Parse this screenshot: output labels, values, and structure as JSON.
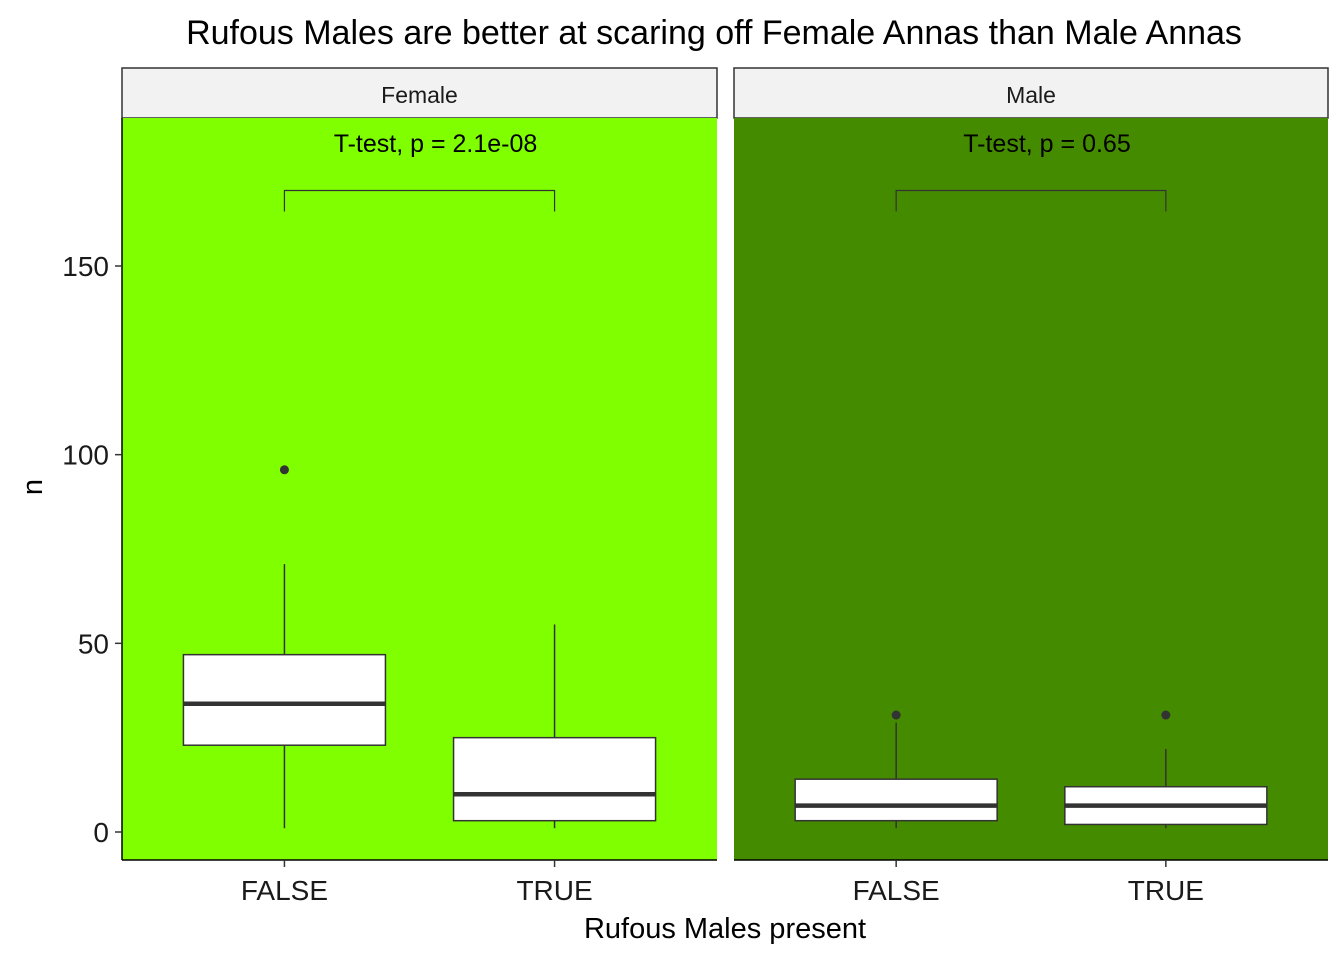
{
  "chart_data": {
    "type": "boxplot",
    "title": "Rufous Males are better at scaring off Female Annas than Male Annas",
    "xlabel": "Rufous Males present",
    "ylabel": "n",
    "categories": [
      "FALSE",
      "TRUE"
    ],
    "ylim": [
      -8,
      190
    ],
    "yticks": [
      0,
      50,
      100,
      150
    ],
    "grid": false,
    "legend": "none",
    "facets": [
      {
        "label": "Female",
        "panel_color": "#7FFF00",
        "annotation": "T-test, p = 2.1e-08",
        "bracket_y": 170,
        "boxes": [
          {
            "category": "FALSE",
            "lower_whisker": 1,
            "q1": 23,
            "median": 34,
            "q3": 47,
            "upper_whisker": 71,
            "outliers": [
              96
            ]
          },
          {
            "category": "TRUE",
            "lower_whisker": 1,
            "q1": 3,
            "median": 10,
            "q3": 25,
            "upper_whisker": 55,
            "outliers": []
          }
        ]
      },
      {
        "label": "Male",
        "panel_color": "#458B00",
        "annotation": "T-test, p = 0.65",
        "bracket_y": 170,
        "boxes": [
          {
            "category": "FALSE",
            "lower_whisker": 1,
            "q1": 3,
            "median": 7,
            "q3": 14,
            "upper_whisker": 29,
            "outliers": [
              31
            ]
          },
          {
            "category": "TRUE",
            "lower_whisker": 1,
            "q1": 2,
            "median": 7,
            "q3": 12,
            "upper_whisker": 22,
            "outliers": [
              31
            ]
          }
        ]
      }
    ]
  }
}
